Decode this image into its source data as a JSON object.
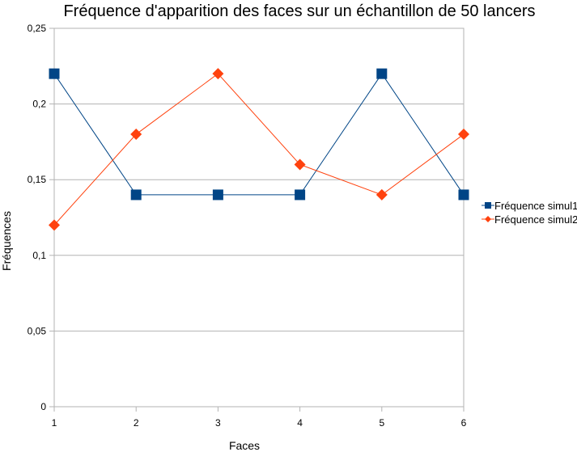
{
  "chart_data": {
    "type": "line",
    "title": "Fréquence d'apparition des faces sur un échantillon de 50 lancers",
    "xlabel": "Faces",
    "ylabel": "Fréquences",
    "x": [
      "1",
      "2",
      "3",
      "4",
      "5",
      "6"
    ],
    "ylim": [
      0,
      0.25
    ],
    "yticks": [
      "0",
      "0,05",
      "0,1",
      "0,15",
      "0,2",
      "0,25"
    ],
    "grid": true,
    "legend_position": "right",
    "series": [
      {
        "name": "Fréquence simul1",
        "values": [
          0.22,
          0.14,
          0.14,
          0.14,
          0.22,
          0.14
        ],
        "color": "#004586",
        "marker": "square"
      },
      {
        "name": "Fréquence simul2",
        "values": [
          0.12,
          0.18,
          0.22,
          0.16,
          0.14,
          0.18
        ],
        "color": "#ff420e",
        "marker": "diamond"
      }
    ]
  }
}
